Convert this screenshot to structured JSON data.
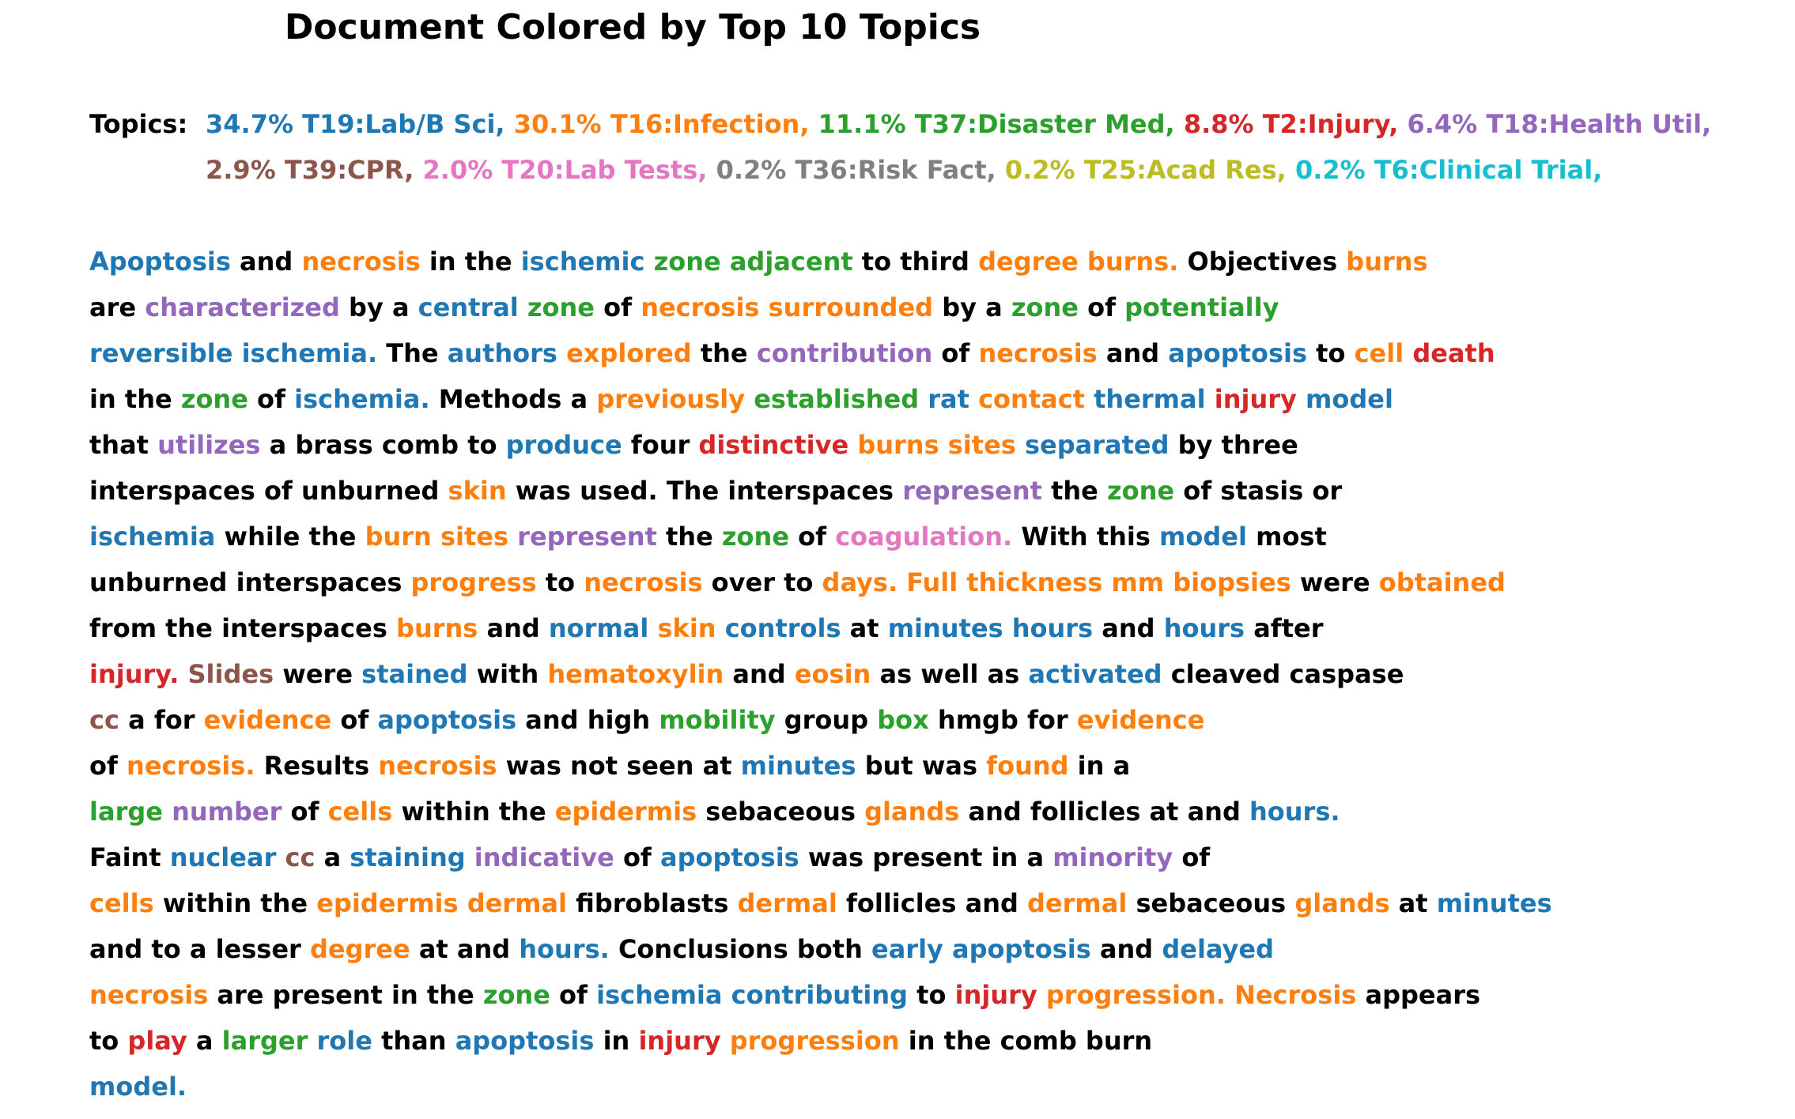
{
  "title": "Document Colored by Top 10 Topics",
  "topics_label": "Topics:",
  "palette": [
    "#1f77b4",
    "#ff7f0e",
    "#2ca02c",
    "#d62728",
    "#9467bd",
    "#8c564b",
    "#e377c2",
    "#7f7f7f",
    "#bcbd22",
    "#17becf"
  ],
  "topic_lines": [
    [
      {
        "text": "34.7% T19:Lab/B Sci,",
        "c": 0
      },
      {
        "text": "30.1% T16:Infection,",
        "c": 1
      },
      {
        "text": "11.1% T37:Disaster Med,",
        "c": 2
      },
      {
        "text": "8.8% T2:Injury,",
        "c": 3
      },
      {
        "text": "6.4% T18:Health Util,",
        "c": 4
      }
    ],
    [
      {
        "text": "2.9% T39:CPR,",
        "c": 5
      },
      {
        "text": "2.0% T20:Lab Tests,",
        "c": 6
      },
      {
        "text": "0.2% T36:Risk Fact,",
        "c": 7
      },
      {
        "text": "0.2% T25:Acad Res,",
        "c": 8
      },
      {
        "text": "0.2% T6:Clinical Trial,",
        "c": 9
      }
    ]
  ],
  "doc_lines": [
    [
      [
        "Apoptosis",
        0
      ],
      [
        "and",
        -1
      ],
      [
        "necrosis",
        1
      ],
      [
        "in the",
        -1
      ],
      [
        "ischemic",
        0
      ],
      [
        "zone adjacent",
        2
      ],
      [
        "to third",
        -1
      ],
      [
        "degree burns.",
        1
      ],
      [
        "Objectives",
        -1
      ],
      [
        "burns",
        1
      ]
    ],
    [
      [
        "are",
        -1
      ],
      [
        "characterized",
        4
      ],
      [
        "by a",
        -1
      ],
      [
        "central",
        0
      ],
      [
        "zone",
        2
      ],
      [
        "of",
        -1
      ],
      [
        "necrosis surrounded",
        1
      ],
      [
        "by a",
        -1
      ],
      [
        "zone",
        2
      ],
      [
        "of",
        -1
      ],
      [
        "potentially",
        2
      ]
    ],
    [
      [
        "reversible ischemia.",
        0
      ],
      [
        "The",
        -1
      ],
      [
        "authors",
        0
      ],
      [
        "explored",
        1
      ],
      [
        "the",
        -1
      ],
      [
        "contribution",
        4
      ],
      [
        "of",
        -1
      ],
      [
        "necrosis",
        1
      ],
      [
        "and",
        -1
      ],
      [
        "apoptosis",
        0
      ],
      [
        "to",
        -1
      ],
      [
        "cell",
        1
      ],
      [
        "death",
        3
      ]
    ],
    [
      [
        "in the",
        -1
      ],
      [
        "zone",
        2
      ],
      [
        "of",
        -1
      ],
      [
        "ischemia.",
        0
      ],
      [
        "Methods a",
        -1
      ],
      [
        "previously",
        1
      ],
      [
        "established",
        2
      ],
      [
        "rat",
        0
      ],
      [
        "contact",
        1
      ],
      [
        "thermal",
        0
      ],
      [
        "injury",
        3
      ],
      [
        "model",
        0
      ]
    ],
    [
      [
        "that",
        -1
      ],
      [
        "utilizes",
        4
      ],
      [
        "a brass comb to",
        -1
      ],
      [
        "produce",
        0
      ],
      [
        "four",
        -1
      ],
      [
        "distinctive",
        3
      ],
      [
        "burns sites",
        1
      ],
      [
        "separated",
        0
      ],
      [
        "by three",
        -1
      ]
    ],
    [
      [
        "interspaces of unburned",
        -1
      ],
      [
        "skin",
        1
      ],
      [
        "was used. The interspaces",
        -1
      ],
      [
        "represent",
        4
      ],
      [
        "the",
        -1
      ],
      [
        "zone",
        2
      ],
      [
        "of stasis or",
        -1
      ]
    ],
    [
      [
        "ischemia",
        0
      ],
      [
        "while the",
        -1
      ],
      [
        "burn sites",
        1
      ],
      [
        "represent",
        4
      ],
      [
        "the",
        -1
      ],
      [
        "zone",
        2
      ],
      [
        "of",
        -1
      ],
      [
        "coagulation.",
        6
      ],
      [
        "With this",
        -1
      ],
      [
        "model",
        0
      ],
      [
        "most",
        -1
      ]
    ],
    [
      [
        "unburned interspaces",
        -1
      ],
      [
        "progress",
        1
      ],
      [
        "to",
        -1
      ],
      [
        "necrosis",
        1
      ],
      [
        "over to",
        -1
      ],
      [
        "days. Full thickness mm biopsies",
        1
      ],
      [
        "were",
        -1
      ],
      [
        "obtained",
        1
      ]
    ],
    [
      [
        "from the interspaces",
        -1
      ],
      [
        "burns",
        1
      ],
      [
        "and",
        -1
      ],
      [
        "normal",
        0
      ],
      [
        "skin",
        1
      ],
      [
        "controls",
        0
      ],
      [
        "at",
        -1
      ],
      [
        "minutes hours",
        0
      ],
      [
        "and",
        -1
      ],
      [
        "hours",
        0
      ],
      [
        "after",
        -1
      ]
    ],
    [
      [
        "injury.",
        3
      ],
      [
        "Slides",
        5
      ],
      [
        "were",
        -1
      ],
      [
        "stained",
        0
      ],
      [
        "with",
        -1
      ],
      [
        "hematoxylin",
        1
      ],
      [
        "and",
        -1
      ],
      [
        "eosin",
        1
      ],
      [
        "as well as",
        -1
      ],
      [
        "activated",
        0
      ],
      [
        "cleaved caspase",
        -1
      ]
    ],
    [
      [
        "cc",
        5
      ],
      [
        "a for",
        -1
      ],
      [
        "evidence",
        1
      ],
      [
        "of",
        -1
      ],
      [
        "apoptosis",
        0
      ],
      [
        "and high",
        -1
      ],
      [
        "mobility",
        2
      ],
      [
        "group",
        -1
      ],
      [
        "box",
        2
      ],
      [
        "hmgb for",
        -1
      ],
      [
        "evidence",
        1
      ]
    ],
    [
      [
        "of",
        -1
      ],
      [
        "necrosis.",
        1
      ],
      [
        "Results",
        -1
      ],
      [
        "necrosis",
        1
      ],
      [
        "was not seen at",
        -1
      ],
      [
        "minutes",
        0
      ],
      [
        "but was",
        -1
      ],
      [
        "found",
        1
      ],
      [
        "in a",
        -1
      ]
    ],
    [
      [
        "large",
        2
      ],
      [
        "number",
        4
      ],
      [
        "of",
        -1
      ],
      [
        "cells",
        1
      ],
      [
        "within the",
        -1
      ],
      [
        "epidermis",
        1
      ],
      [
        "sebaceous",
        -1
      ],
      [
        "glands",
        1
      ],
      [
        "and follicles at and",
        -1
      ],
      [
        "hours.",
        0
      ]
    ],
    [
      [
        "Faint",
        -1
      ],
      [
        "nuclear",
        0
      ],
      [
        "cc",
        5
      ],
      [
        "a",
        -1
      ],
      [
        "staining",
        0
      ],
      [
        "indicative",
        4
      ],
      [
        "of",
        -1
      ],
      [
        "apoptosis",
        0
      ],
      [
        "was present in a",
        -1
      ],
      [
        "minority",
        4
      ],
      [
        "of",
        -1
      ]
    ],
    [
      [
        "cells",
        1
      ],
      [
        "within the",
        -1
      ],
      [
        "epidermis dermal",
        1
      ],
      [
        "fibroblasts",
        -1
      ],
      [
        "dermal",
        1
      ],
      [
        "follicles and",
        -1
      ],
      [
        "dermal",
        1
      ],
      [
        "sebaceous",
        -1
      ],
      [
        "glands",
        1
      ],
      [
        "at",
        -1
      ],
      [
        "minutes",
        0
      ]
    ],
    [
      [
        "and to a lesser",
        -1
      ],
      [
        "degree",
        1
      ],
      [
        "at and",
        -1
      ],
      [
        "hours.",
        0
      ],
      [
        "Conclusions both",
        -1
      ],
      [
        "early apoptosis",
        0
      ],
      [
        "and",
        -1
      ],
      [
        "delayed",
        0
      ]
    ],
    [
      [
        "necrosis",
        1
      ],
      [
        "are present in the",
        -1
      ],
      [
        "zone",
        2
      ],
      [
        "of",
        -1
      ],
      [
        "ischemia contributing",
        0
      ],
      [
        "to",
        -1
      ],
      [
        "injury",
        3
      ],
      [
        "progression. Necrosis",
        1
      ],
      [
        "appears",
        -1
      ]
    ],
    [
      [
        "to",
        -1
      ],
      [
        "play",
        3
      ],
      [
        "a",
        -1
      ],
      [
        "larger",
        2
      ],
      [
        "role",
        0
      ],
      [
        "than",
        -1
      ],
      [
        "apoptosis",
        0
      ],
      [
        "in",
        -1
      ],
      [
        "injury",
        3
      ],
      [
        "progression",
        1
      ],
      [
        "in the comb burn",
        -1
      ]
    ],
    [
      [
        "model.",
        0
      ]
    ]
  ]
}
